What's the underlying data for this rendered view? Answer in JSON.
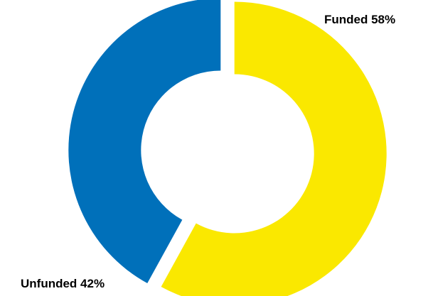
{
  "chart_data": {
    "type": "pie",
    "variant": "donut",
    "slices": [
      {
        "label": "Funded",
        "value": 58,
        "color": "#FAE800",
        "label_text": "Funded 58%"
      },
      {
        "label": "Unfunded",
        "value": 42,
        "color": "#0070BA",
        "label_text": "Unfunded 42%"
      }
    ],
    "legend": "none"
  }
}
